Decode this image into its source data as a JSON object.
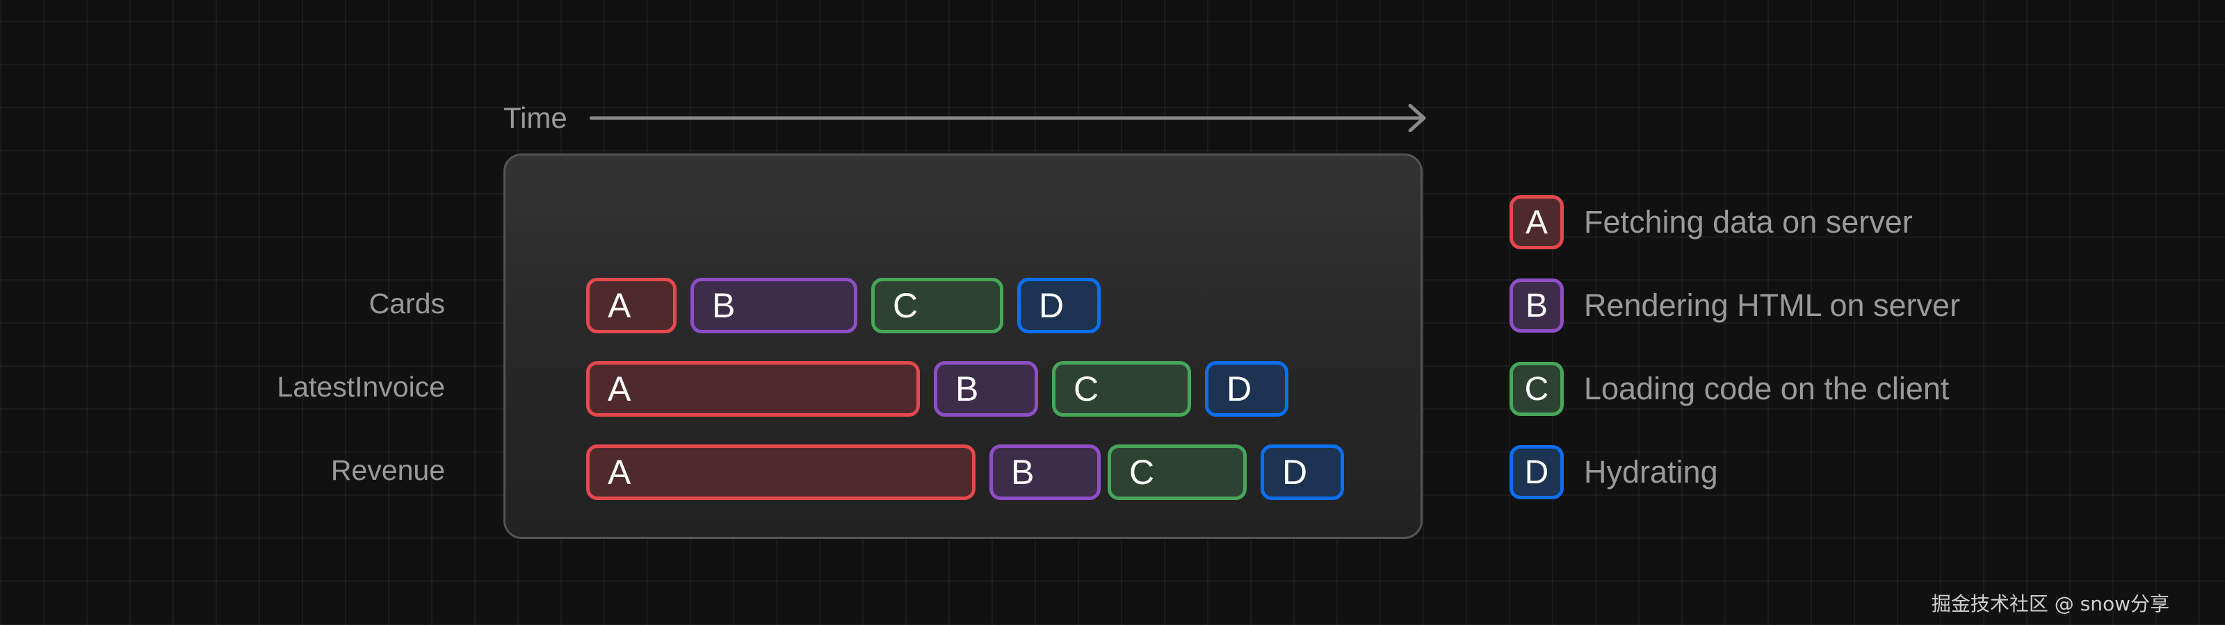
{
  "chart_data": {
    "type": "gantt",
    "time_axis_label": "Time",
    "xlim": [
      0,
      120
    ],
    "rows": [
      {
        "label": "Cards",
        "segments": [
          {
            "phase": "A",
            "start": 0,
            "end": 13
          },
          {
            "phase": "B",
            "start": 15,
            "end": 39
          },
          {
            "phase": "C",
            "start": 41,
            "end": 60
          },
          {
            "phase": "D",
            "start": 62,
            "end": 74
          }
        ]
      },
      {
        "label": "LatestInvoice",
        "segments": [
          {
            "phase": "A",
            "start": 0,
            "end": 48
          },
          {
            "phase": "B",
            "start": 50,
            "end": 65
          },
          {
            "phase": "C",
            "start": 67,
            "end": 87
          },
          {
            "phase": "D",
            "start": 89,
            "end": 101
          }
        ]
      },
      {
        "label": "Revenue",
        "segments": [
          {
            "phase": "A",
            "start": 0,
            "end": 56
          },
          {
            "phase": "B",
            "start": 58,
            "end": 74
          },
          {
            "phase": "C",
            "start": 75,
            "end": 95
          },
          {
            "phase": "D",
            "start": 97,
            "end": 109
          }
        ]
      }
    ],
    "legend": [
      {
        "key": "A",
        "label": "Fetching data on server",
        "border": "#e5484d",
        "fill": "#4f2a2d"
      },
      {
        "key": "B",
        "label": "Rendering HTML on server",
        "border": "#8e4ec6",
        "fill": "#3d2d4b"
      },
      {
        "key": "C",
        "label": "Loading code on the client",
        "border": "#46a758",
        "fill": "#2d4232"
      },
      {
        "key": "D",
        "label": "Hydrating",
        "border": "#0b6fef",
        "fill": "#1d3352"
      }
    ],
    "legend_placement": "right"
  },
  "watermark": "掘金技术社区 @ snow分享"
}
